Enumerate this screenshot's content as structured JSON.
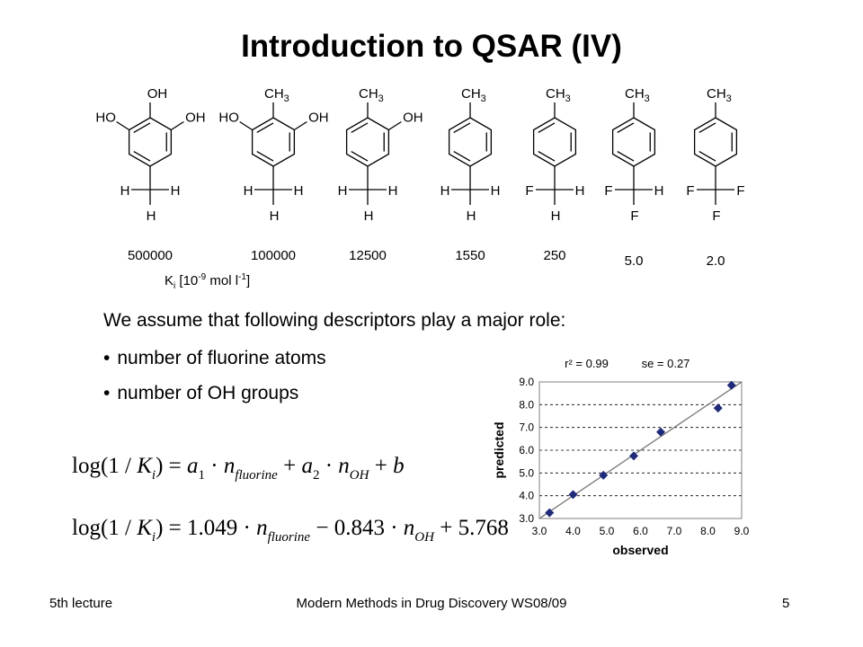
{
  "slide": {
    "title": "Introduction to QSAR (IV)",
    "intro": "We assume that following descriptors play a major role:",
    "bullets": [
      "number of fluorine atoms",
      "number of OH groups"
    ],
    "bullet_symbol": "•"
  },
  "molecules": [
    {
      "top": "OH",
      "left": "HO",
      "right": "OH",
      "cx_left": "H",
      "cx_right": "H",
      "cx_bottom": "H",
      "ki": "500000"
    },
    {
      "top": "CH3",
      "left": "HO",
      "right": "OH",
      "cx_left": "H",
      "cx_right": "H",
      "cx_bottom": "H",
      "ki": "100000"
    },
    {
      "top": "CH3",
      "left": "",
      "right": "OH",
      "cx_left": "H",
      "cx_right": "H",
      "cx_bottom": "H",
      "ki": "12500"
    },
    {
      "top": "CH3",
      "left": "",
      "right": "",
      "cx_left": "H",
      "cx_right": "H",
      "cx_bottom": "H",
      "ki": "1550"
    },
    {
      "top": "CH3",
      "left": "",
      "right": "",
      "cx_left": "F",
      "cx_right": "H",
      "cx_bottom": "H",
      "ki": "250"
    },
    {
      "top": "CH3",
      "left": "",
      "right": "",
      "cx_left": "F",
      "cx_right": "H",
      "cx_bottom": "F",
      "ki": "5.0"
    },
    {
      "top": "CH3",
      "left": "",
      "right": "",
      "cx_left": "F",
      "cx_right": "F",
      "cx_bottom": "F",
      "ki": "2.0"
    }
  ],
  "ki_label": {
    "base": "K",
    "sub": "i",
    "open": " [10",
    "exp": "-9",
    "unit": " mol l",
    "unit_exp": "-1",
    "close": "]"
  },
  "equations": {
    "general": {
      "lhs": "log(1 / ",
      "k": "K",
      "k_sub": "i",
      "lhs_close": ")",
      "eq": " = ",
      "a1": "a",
      "a1_sub": "1",
      "dot": " · ",
      "n": "n",
      "sub_f": "fluorine",
      "plus": " + ",
      "a2": "a",
      "a2_sub": "2",
      "sub_oh": "OH",
      "b": "b"
    },
    "fitted": {
      "lhs": "log(1 / ",
      "k": "K",
      "k_sub": "i",
      "lhs_close": ")",
      "eq": " = ",
      "c1": "1.049",
      "dot": " · ",
      "n": "n",
      "sub_f": "fluorine",
      "minus": " − ",
      "c2": "0.843",
      "sub_oh": "OH",
      "plus": " + ",
      "c0": "5.768"
    }
  },
  "chart_data": {
    "type": "scatter",
    "title": "r² = 0.99   se = 0.27",
    "xlabel": "observed",
    "ylabel": "predicted",
    "xlim": [
      3.0,
      9.0
    ],
    "ylim": [
      3.0,
      9.0
    ],
    "xticks": [
      "3.0",
      "4.0",
      "5.0",
      "6.0",
      "7.0",
      "8.0",
      "9.0"
    ],
    "yticks": [
      "3.0",
      "4.0",
      "5.0",
      "6.0",
      "7.0",
      "8.0",
      "9.0"
    ],
    "grid": "horizontal-dashed",
    "marker_color": "#1f2a7a",
    "line_color": "#808080",
    "points": [
      {
        "x": 3.3,
        "y": 3.25
      },
      {
        "x": 4.0,
        "y": 4.05
      },
      {
        "x": 4.9,
        "y": 4.9
      },
      {
        "x": 5.8,
        "y": 5.75
      },
      {
        "x": 6.6,
        "y": 6.8
      },
      {
        "x": 8.3,
        "y": 7.85
      },
      {
        "x": 8.7,
        "y": 8.85
      }
    ],
    "regression_line": [
      [
        3.0,
        3.0
      ],
      [
        9.0,
        9.0
      ]
    ]
  },
  "footer": {
    "left": "5th lecture",
    "center": "Modern Methods in Drug Discovery WS08/09",
    "right": "5"
  }
}
